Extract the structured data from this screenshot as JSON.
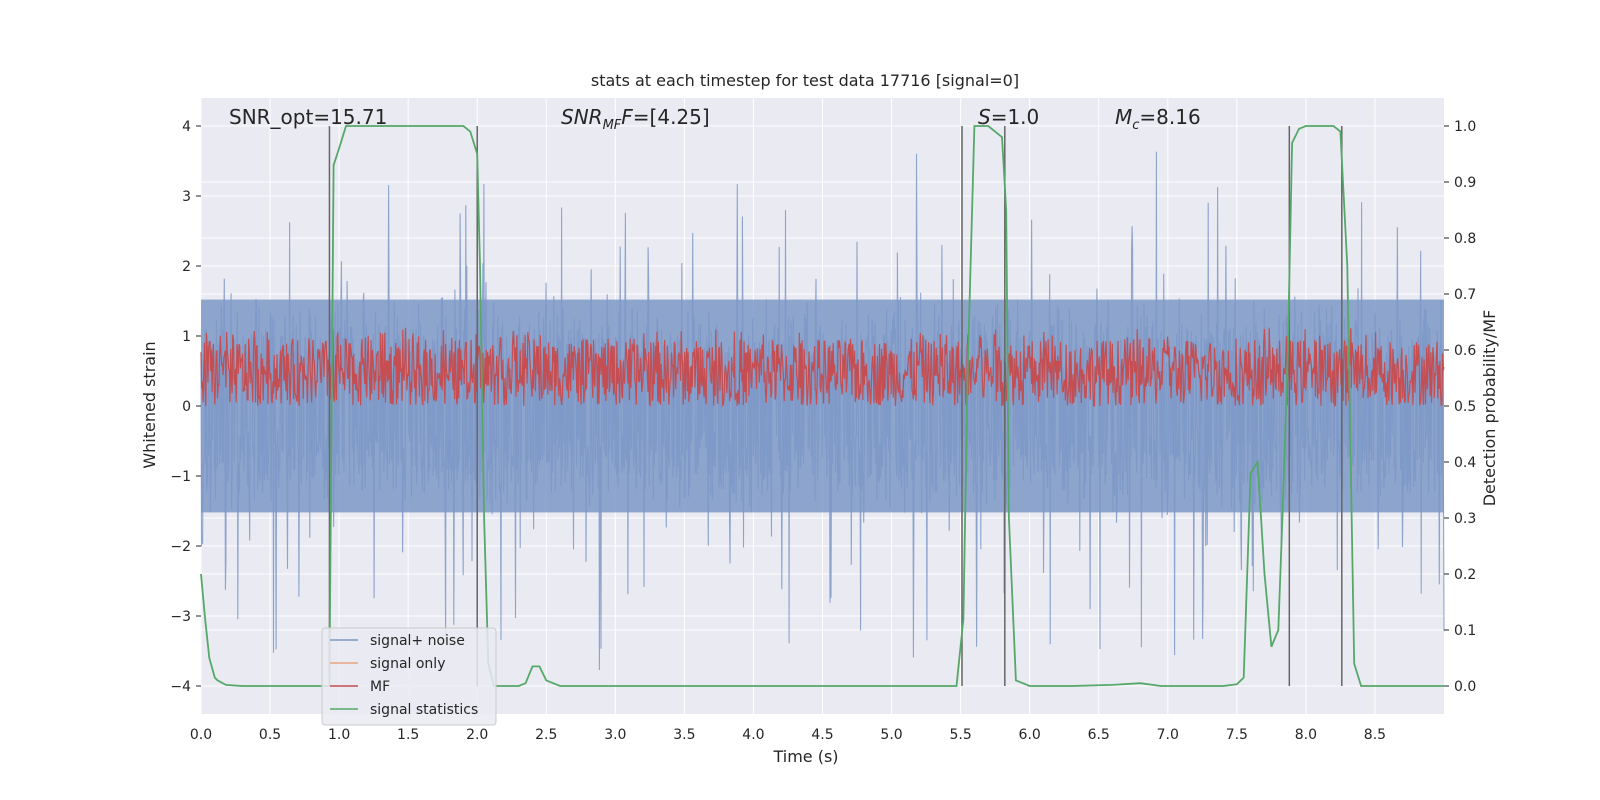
{
  "chart_data": {
    "type": "line",
    "title": "stats at each timestep for test data 17716 [signal=0]",
    "xlabel": "Time (s)",
    "ylabel": "Whitened strain",
    "y2label": "Detection probability/MF",
    "xlim": [
      0.0,
      9.0
    ],
    "ylim": [
      -4.4,
      4.4
    ],
    "y2lim": [
      -0.05,
      1.05
    ],
    "xticks": [
      "0.0",
      "0.5",
      "1.0",
      "1.5",
      "2.0",
      "2.5",
      "3.0",
      "3.5",
      "4.0",
      "4.5",
      "5.0",
      "5.5",
      "6.0",
      "6.5",
      "7.0",
      "7.5",
      "8.0",
      "8.5"
    ],
    "xtick_values": [
      0.0,
      0.5,
      1.0,
      1.5,
      2.0,
      2.5,
      3.0,
      3.5,
      4.0,
      4.5,
      5.0,
      5.5,
      6.0,
      6.5,
      7.0,
      7.5,
      8.0,
      8.5
    ],
    "yticks": [
      "−4",
      "−3",
      "−2",
      "−1",
      "0",
      "1",
      "2",
      "3",
      "4"
    ],
    "ytick_values": [
      -4,
      -3,
      -2,
      -1,
      0,
      1,
      2,
      3,
      4
    ],
    "y2ticks": [
      "0.0",
      "0.1",
      "0.2",
      "0.3",
      "0.4",
      "0.5",
      "0.6",
      "0.7",
      "0.8",
      "0.9",
      "1.0"
    ],
    "y2tick_values": [
      0.0,
      0.1,
      0.2,
      0.3,
      0.4,
      0.5,
      0.6,
      0.7,
      0.8,
      0.9,
      1.0
    ],
    "grid": true,
    "legend_position": "bottom-left",
    "annotations": {
      "snr_opt": "SNR_opt=15.71",
      "snr_mf_main": "SNR",
      "snr_mf_sub": "MF",
      "snr_mf_value": "=[4.25]",
      "s_main": "S",
      "s_value": "=1.0",
      "mc_main": "M",
      "mc_sub": "c",
      "mc_value": "=8.16"
    },
    "series": [
      {
        "name": "signal+ noise",
        "color": "#7d98c7",
        "axis": "left",
        "style": "noise band",
        "envelope_typical": [
          -1.6,
          1.6
        ],
        "envelope_max": [
          -3.6,
          4.0
        ]
      },
      {
        "name": "signal only",
        "color": "#e8a482",
        "axis": "left",
        "values": []
      },
      {
        "name": "MF",
        "color": "#c44e52",
        "axis": "right",
        "style": "noise band",
        "range": [
          0.5,
          0.62
        ]
      },
      {
        "name": "signal statistics",
        "color": "#55a868",
        "axis": "right",
        "x": [
          0.0,
          0.03,
          0.06,
          0.1,
          0.12,
          0.18,
          0.3,
          0.5,
          0.8,
          0.93,
          0.96,
          1.0,
          1.05,
          1.1,
          1.3,
          1.6,
          1.9,
          1.95,
          2.0,
          2.02,
          2.05,
          2.08,
          2.12,
          2.2,
          2.3,
          2.35,
          2.4,
          2.45,
          2.5,
          2.6,
          2.8,
          3.2,
          4.0,
          4.8,
          5.4,
          5.47,
          5.52,
          5.55,
          5.6,
          5.7,
          5.75,
          5.8,
          5.83,
          5.85,
          5.9,
          6.0,
          6.3,
          6.6,
          6.8,
          6.95,
          7.1,
          7.4,
          7.5,
          7.55,
          7.6,
          7.65,
          7.7,
          7.75,
          7.8,
          7.83,
          7.87,
          7.9,
          7.95,
          8.0,
          8.1,
          8.2,
          8.25,
          8.3,
          8.35,
          8.4,
          8.6,
          8.8,
          9.0
        ],
        "y": [
          0.2,
          0.12,
          0.05,
          0.015,
          0.01,
          0.002,
          0.0,
          0.0,
          0.0,
          0.0,
          0.93,
          0.96,
          1.0,
          1.0,
          1.0,
          1.0,
          1.0,
          0.99,
          0.95,
          0.75,
          0.3,
          0.04,
          0.0,
          0.0,
          0.0,
          0.005,
          0.035,
          0.035,
          0.01,
          0.0,
          0.0,
          0.0,
          0.0,
          0.0,
          0.0,
          0.0,
          0.12,
          0.55,
          1.0,
          1.0,
          0.99,
          0.98,
          0.85,
          0.3,
          0.01,
          0.0,
          0.0,
          0.002,
          0.005,
          0.0,
          0.0,
          0.0,
          0.003,
          0.015,
          0.38,
          0.4,
          0.2,
          0.07,
          0.1,
          0.3,
          0.6,
          0.97,
          0.995,
          1.0,
          1.0,
          1.0,
          0.99,
          0.75,
          0.04,
          0.0,
          0.0,
          0.0,
          0.0
        ]
      }
    ],
    "vlines": [
      0.93,
      2.0,
      5.51,
      5.82,
      7.88,
      8.26
    ],
    "vline_color": "#666666"
  }
}
